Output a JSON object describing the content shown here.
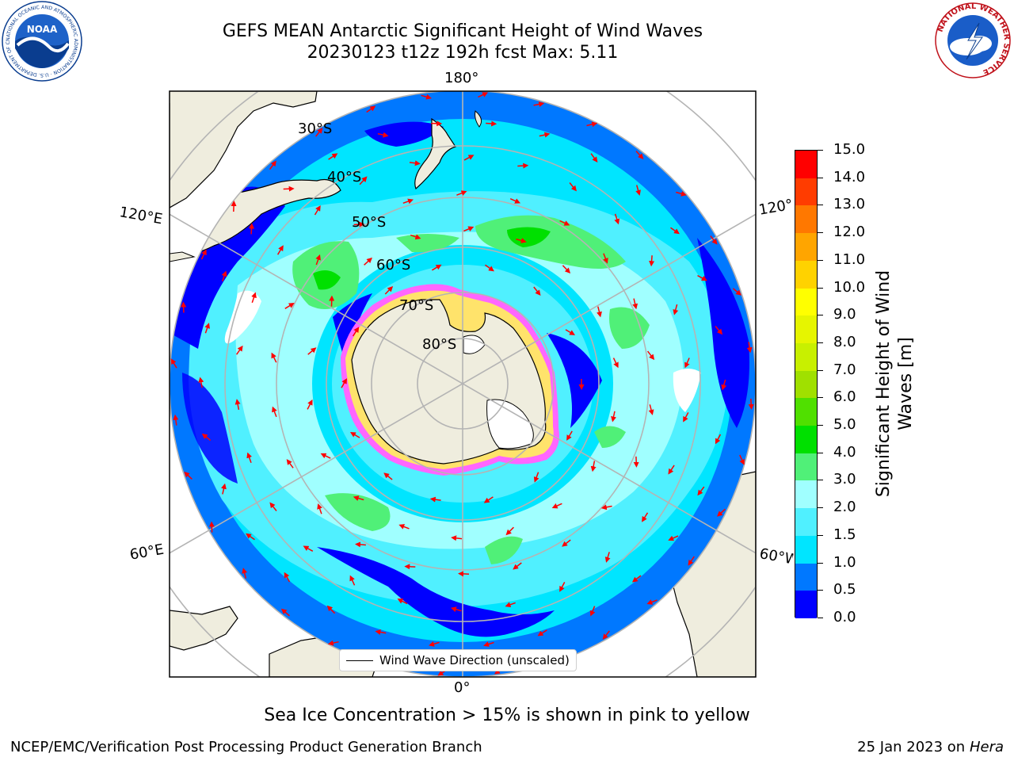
{
  "header": {
    "title_line1": "GEFS MEAN Antarctic Significant Height of Wind Waves",
    "title_line2": "20230123 t12z 192h fcst   Max: 5.11"
  },
  "logos": {
    "noaa": {
      "icon": "noaa-logo",
      "text": "NOAA",
      "ring_text": "NATIONAL OCEANIC AND ATMOSPHERIC ADMINISTRATION · U.S. DEPARTMENT OF COMMERCE"
    },
    "nws": {
      "icon": "national-weather-service-logo",
      "ring_text": "NATIONAL WEATHER SERVICE"
    }
  },
  "map": {
    "projection": "south-polar-stereographic",
    "longitude_labels": {
      "top": "180°",
      "bottom": "0°",
      "upper_left": "120°E",
      "upper_right": "120°W",
      "lower_left": "60°E",
      "lower_right": "60°W"
    },
    "latitude_labels": [
      "30°S",
      "40°S",
      "50°S",
      "60°S",
      "70°S",
      "80°S"
    ],
    "max_value": 5.11,
    "legend": {
      "label": "Wind Wave Direction (unscaled)"
    },
    "colors": {
      "land": "#efedde",
      "ice": "#ffffff",
      "arrows": "#ff0000",
      "grid": "#b4b4b4"
    }
  },
  "colorbar": {
    "title": "Significant Height of Wind Waves [m]",
    "levels": [
      "0.0",
      "0.5",
      "1.0",
      "1.5",
      "2.0",
      "3.0",
      "4.0",
      "5.0",
      "6.0",
      "7.0",
      "8.0",
      "9.0",
      "10.0",
      "11.0",
      "12.0",
      "13.0",
      "14.0",
      "15.0"
    ],
    "colors": [
      "#0000ff",
      "#0078ff",
      "#00e5ff",
      "#50f0ff",
      "#a0ffff",
      "#50f078",
      "#00e000",
      "#50e000",
      "#a0e000",
      "#c8f000",
      "#e6f500",
      "#ffff00",
      "#ffd200",
      "#ffa500",
      "#ff7800",
      "#ff3c00",
      "#ff0000"
    ]
  },
  "footer": {
    "note": "Sea Ice Concentration > 15% is shown in pink to yellow",
    "credit": "NCEP/EMC/Verification Post Processing Product Generation Branch",
    "date": "25 Jan 2023 on",
    "host": "Hera"
  }
}
